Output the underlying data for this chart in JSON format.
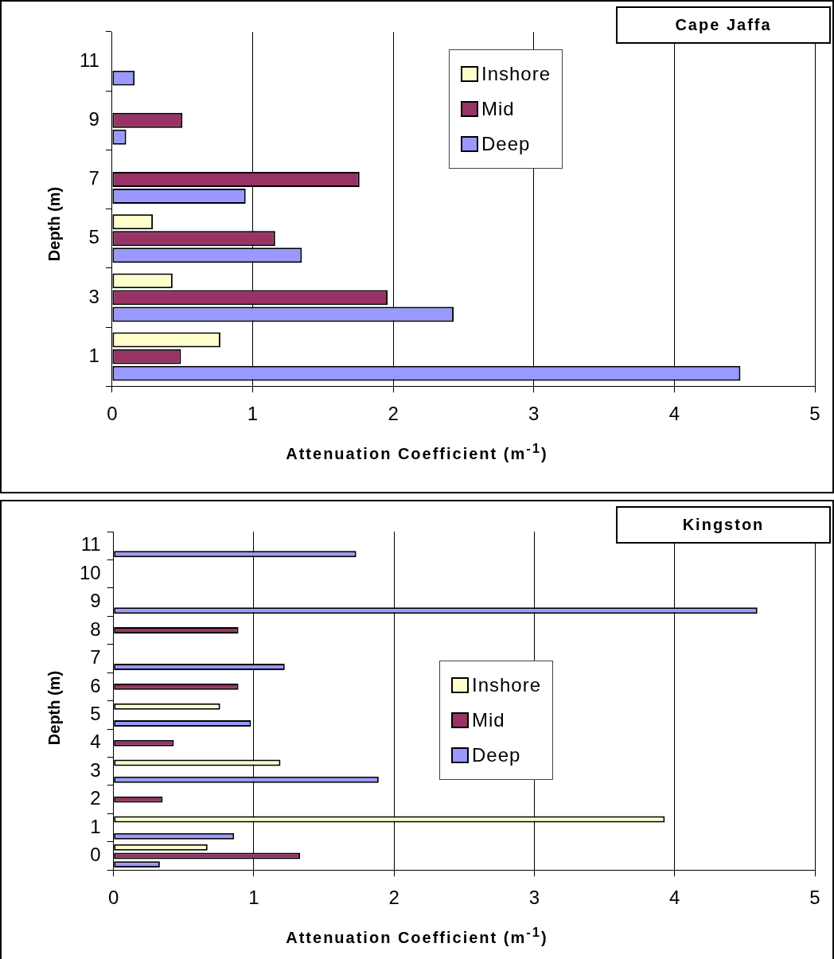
{
  "chart_data": [
    {
      "type": "bar",
      "orientation": "horizontal",
      "title": "Cape Jaffa",
      "xlabel": "Attenuation Coefficient (m$^{-1}$)",
      "ylabel": "Depth (m)",
      "categories": [
        "11",
        "9",
        "7",
        "5",
        "3",
        "1"
      ],
      "series": [
        {
          "name": "Inshore",
          "color": "#ffffcc",
          "values": [
            null,
            null,
            null,
            0.29,
            0.43,
            0.77
          ]
        },
        {
          "name": "Mid",
          "color": "#993366",
          "values": [
            null,
            0.5,
            1.76,
            1.16,
            1.96,
            0.49
          ]
        },
        {
          "name": "Deep",
          "color": "#9999ff",
          "values": [
            0.16,
            0.1,
            0.95,
            1.35,
            2.43,
            4.47
          ]
        }
      ],
      "xlim": [
        0,
        5
      ],
      "xticks": [
        0,
        1,
        2,
        3,
        4,
        5
      ],
      "grid": "x",
      "legend": "top right"
    },
    {
      "type": "bar",
      "orientation": "horizontal",
      "title": "Kingston",
      "xlabel": "Attenuation Coefficient (m$^{-1}$)",
      "ylabel": "Depth (m)",
      "categories": [
        "11",
        "10",
        "9",
        "8",
        "7",
        "6",
        "5",
        "4",
        "3",
        "2",
        "1",
        "0"
      ],
      "series": [
        {
          "name": "Inshore",
          "color": "#ffffcc",
          "values": [
            null,
            null,
            null,
            null,
            null,
            null,
            0.76,
            null,
            1.19,
            null,
            3.93,
            0.67
          ]
        },
        {
          "name": "Mid",
          "color": "#993366",
          "values": [
            null,
            null,
            null,
            0.89,
            null,
            0.89,
            null,
            0.43,
            null,
            0.35,
            null,
            1.33
          ]
        },
        {
          "name": "Deep",
          "color": "#9999ff",
          "values": [
            1.73,
            null,
            4.59,
            null,
            1.22,
            null,
            0.98,
            null,
            1.89,
            null,
            0.86,
            0.33
          ]
        }
      ],
      "xlim": [
        0,
        5
      ],
      "xticks": [
        0,
        1,
        2,
        3,
        4,
        5
      ],
      "grid": "x",
      "legend": "right"
    }
  ]
}
